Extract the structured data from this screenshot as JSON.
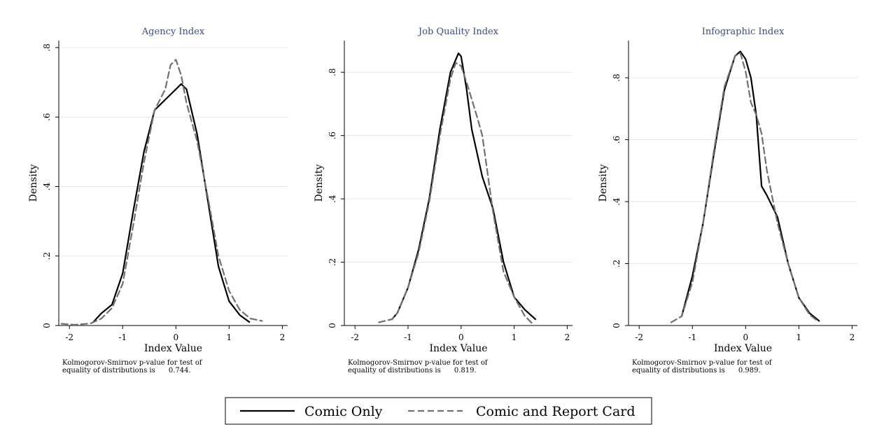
{
  "legend": {
    "items": [
      {
        "label": "Comic Only",
        "style": "solid",
        "color": "#000000"
      },
      {
        "label": "Comic and Report Card",
        "style": "dashed",
        "color": "#707070"
      }
    ]
  },
  "chart_data": [
    {
      "type": "line",
      "title": "Agency Index",
      "xlabel": "Index Value",
      "ylabel": "Density",
      "xlim": [
        -2.2,
        2.1
      ],
      "ylim": [
        0,
        0.82
      ],
      "xticks": [
        -2,
        -1,
        0,
        1,
        2
      ],
      "xtick_labels": [
        "-2",
        "-1",
        "0",
        "1",
        "2"
      ],
      "yticks": [
        0,
        0.2,
        0.4,
        0.6,
        0.8
      ],
      "ytick_labels": [
        "0",
        ".2",
        ".4",
        ".6",
        ".8"
      ],
      "grid": true,
      "note_lines": [
        "Kolmogorov-Smirnov p-value for test of",
        "equality of distributions is      0.744."
      ],
      "series": [
        {
          "name": "Comic Only",
          "x": [
            -1.55,
            -1.4,
            -1.2,
            -1.0,
            -0.8,
            -0.6,
            -0.4,
            -0.2,
            0.0,
            0.1,
            0.2,
            0.4,
            0.6,
            0.8,
            1.0,
            1.2,
            1.38
          ],
          "y": [
            0.01,
            0.035,
            0.06,
            0.15,
            0.33,
            0.5,
            0.62,
            0.65,
            0.68,
            0.695,
            0.68,
            0.55,
            0.36,
            0.17,
            0.07,
            0.03,
            0.01
          ]
        },
        {
          "name": "Comic and Report Card",
          "x": [
            -2.15,
            -1.9,
            -1.6,
            -1.4,
            -1.2,
            -1.0,
            -0.8,
            -0.6,
            -0.4,
            -0.2,
            -0.1,
            0.0,
            0.1,
            0.2,
            0.4,
            0.6,
            0.8,
            1.0,
            1.2,
            1.4,
            1.62
          ],
          "y": [
            0.005,
            0.002,
            0.006,
            0.02,
            0.05,
            0.12,
            0.29,
            0.47,
            0.62,
            0.68,
            0.75,
            0.765,
            0.72,
            0.64,
            0.53,
            0.37,
            0.2,
            0.1,
            0.045,
            0.02,
            0.013
          ]
        }
      ]
    },
    {
      "type": "line",
      "title": "Job Quality Index",
      "xlabel": "Index Value",
      "ylabel": "Density",
      "xlim": [
        -2.2,
        2.1
      ],
      "ylim": [
        0,
        0.9
      ],
      "xticks": [
        -2,
        -1,
        0,
        1,
        2
      ],
      "xtick_labels": [
        "-2",
        "-1",
        "0",
        "1",
        "2"
      ],
      "yticks": [
        0,
        0.2,
        0.4,
        0.6,
        0.8
      ],
      "ytick_labels": [
        "0",
        ".2",
        ".4",
        ".6",
        ".8"
      ],
      "grid": true,
      "note_lines": [
        "Kolmogorov-Smirnov p-value for test of",
        "equality of distributions is      0.819."
      ],
      "series": [
        {
          "name": "Comic Only",
          "x": [
            -1.3,
            -1.2,
            -1.0,
            -0.8,
            -0.6,
            -0.4,
            -0.2,
            -0.05,
            0.0,
            0.1,
            0.2,
            0.4,
            0.6,
            0.8,
            1.0,
            1.2,
            1.4
          ],
          "y": [
            0.02,
            0.04,
            0.12,
            0.24,
            0.4,
            0.62,
            0.8,
            0.86,
            0.85,
            0.75,
            0.62,
            0.47,
            0.37,
            0.2,
            0.09,
            0.05,
            0.02
          ]
        },
        {
          "name": "Comic and Report Card",
          "x": [
            -1.55,
            -1.3,
            -1.2,
            -1.0,
            -0.8,
            -0.6,
            -0.4,
            -0.2,
            -0.1,
            0.0,
            0.1,
            0.3,
            0.4,
            0.6,
            0.8,
            1.0,
            1.2,
            1.35
          ],
          "y": [
            0.01,
            0.02,
            0.04,
            0.12,
            0.23,
            0.39,
            0.6,
            0.78,
            0.83,
            0.82,
            0.77,
            0.66,
            0.6,
            0.36,
            0.17,
            0.09,
            0.03,
            0.005
          ]
        }
      ]
    },
    {
      "type": "line",
      "title": "Infographic Index",
      "xlabel": "Index Value",
      "ylabel": "Density",
      "xlim": [
        -2.2,
        2.1
      ],
      "ylim": [
        0,
        0.92
      ],
      "xticks": [
        -2,
        -1,
        0,
        1,
        2
      ],
      "xtick_labels": [
        "-2",
        "-1",
        "0",
        "1",
        "2"
      ],
      "yticks": [
        0,
        0.2,
        0.4,
        0.6,
        0.8
      ],
      "ytick_labels": [
        "0",
        ".2",
        ".4",
        ".6",
        ".8"
      ],
      "grid": true,
      "note_lines": [
        "Kolmogorov-Smirnov p-value for test of",
        "equality of distributions is      0.989."
      ],
      "series": [
        {
          "name": "Comic Only",
          "x": [
            -1.2,
            -1.0,
            -0.8,
            -0.6,
            -0.4,
            -0.2,
            -0.1,
            0.0,
            0.1,
            0.2,
            0.3,
            0.4,
            0.6,
            0.8,
            1.0,
            1.2,
            1.38
          ],
          "y": [
            0.03,
            0.16,
            0.33,
            0.55,
            0.76,
            0.87,
            0.885,
            0.86,
            0.8,
            0.68,
            0.45,
            0.42,
            0.35,
            0.2,
            0.09,
            0.04,
            0.015
          ]
        },
        {
          "name": "Comic and Report Card",
          "x": [
            -1.4,
            -1.2,
            -1.0,
            -0.8,
            -0.6,
            -0.4,
            -0.2,
            -0.1,
            0.0,
            0.1,
            0.2,
            0.3,
            0.4,
            0.6,
            0.8,
            1.0,
            1.2,
            1.35
          ],
          "y": [
            0.01,
            0.03,
            0.14,
            0.33,
            0.56,
            0.77,
            0.87,
            0.88,
            0.82,
            0.72,
            0.68,
            0.62,
            0.5,
            0.33,
            0.2,
            0.09,
            0.035,
            0.015
          ]
        }
      ]
    }
  ]
}
